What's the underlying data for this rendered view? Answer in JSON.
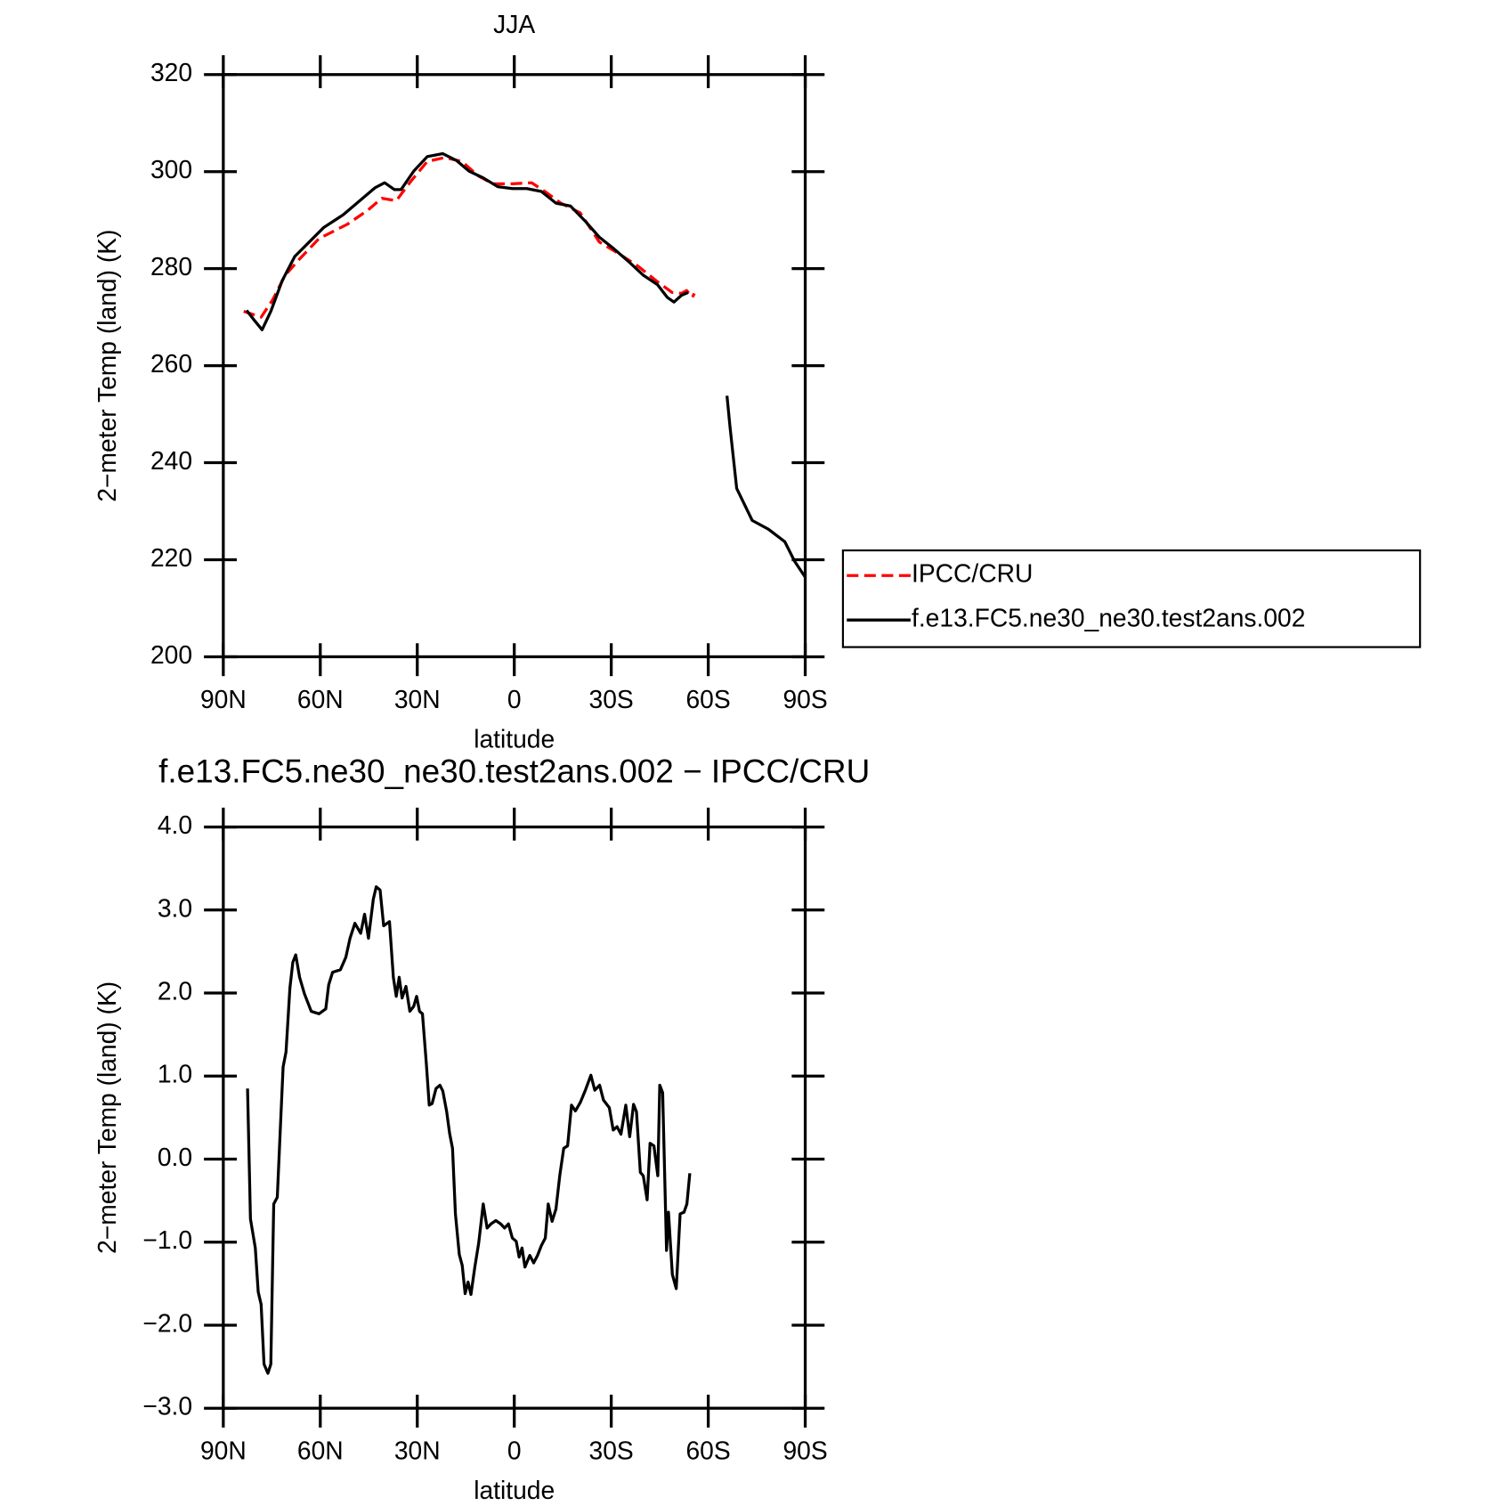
{
  "chart_data": [
    {
      "type": "line",
      "title": "JJA",
      "xlabel": "latitude",
      "ylabel": "2−meter Temp (land) (K)",
      "xlim": [
        90,
        -90
      ],
      "xticks": [
        {
          "value": 90,
          "label": "90N"
        },
        {
          "value": 60,
          "label": "60N"
        },
        {
          "value": 30,
          "label": "30N"
        },
        0,
        {
          "value": -30,
          "label": "30S"
        },
        {
          "value": -60,
          "label": "60S"
        },
        {
          "value": -90,
          "label": "90S"
        }
      ],
      "ylim": [
        200,
        320
      ],
      "yticks": [
        200,
        220,
        240,
        260,
        280,
        300,
        320
      ],
      "series": [
        {
          "name": "IPCC/CRU",
          "color": "#ff0000",
          "dash": true,
          "x": [
            83.7,
            78.3,
            74.7,
            70.9,
            66.4,
            60.4,
            51.5,
            45.4,
            41,
            36.5,
            32,
            26.9,
            21.5,
            16.2,
            11.1,
            6.6,
            0.6,
            -5.4,
            -9.9,
            -14.4,
            -20.4,
            -26.3,
            -32.3,
            -38.3,
            -44.3,
            -48.8,
            -51.7,
            -53.3,
            -55.1,
            -55.7
          ],
          "values": [
            271.2,
            270,
            273.6,
            278.6,
            282,
            286.2,
            289.2,
            292,
            294.5,
            294,
            298,
            302.1,
            302.9,
            302.1,
            299.1,
            297.5,
            297.5,
            297.7,
            295.7,
            293.5,
            291.5,
            285.5,
            283.1,
            280.5,
            277.3,
            275.1,
            274.9,
            275.5,
            274.1,
            274.9
          ]
        },
        {
          "name": "f.e13.FC5.ne30_ne30.test2ans.002",
          "color": "#000000",
          "dash": false,
          "x": [
            82.8,
            80.7,
            78,
            75.3,
            71.8,
            67.9,
            63.4,
            58.9,
            52.9,
            46.9,
            43,
            40.1,
            37.1,
            35,
            31.1,
            26.9,
            22.1,
            17.9,
            14,
            9.6,
            5.1,
            0.6,
            -3.9,
            -8.4,
            -12.9,
            -17.4,
            -21.8,
            -26.3,
            -30.8,
            -35.3,
            -39.8,
            -44.3,
            -47.3,
            -49.4,
            -51.7,
            -53.8,
            -60,
            -65.8,
            -66.7,
            -68.8,
            -73.6,
            -78.6,
            -83.7,
            -86.7,
            -90
          ],
          "values": [
            271.4,
            269.6,
            267.4,
            271.2,
            277.5,
            282.5,
            285.5,
            288.5,
            291.1,
            294.5,
            296.7,
            297.7,
            296.3,
            296.3,
            300.1,
            303.1,
            303.7,
            302.3,
            300.1,
            298.7,
            296.9,
            296.5,
            296.5,
            295.9,
            293.5,
            292.9,
            289.9,
            286.5,
            284.1,
            281.5,
            278.7,
            276.7,
            274.1,
            273.1,
            274.5,
            275.1,
            null,
            253.8,
            247.6,
            234.7,
            228.1,
            226.3,
            223.7,
            219.7,
            216.4
          ]
        }
      ]
    },
    {
      "type": "line",
      "title": "f.e13.FC5.ne30_ne30.test2ans.002 − IPCC/CRU",
      "xlabel": "latitude",
      "ylabel": "2−meter Temp (land) (K)",
      "xlim": [
        90,
        -90
      ],
      "xticks": [
        {
          "value": 90,
          "label": "90N"
        },
        {
          "value": 60,
          "label": "60N"
        },
        {
          "value": 30,
          "label": "30N"
        },
        0,
        {
          "value": -30,
          "label": "30S"
        },
        {
          "value": -60,
          "label": "60S"
        },
        {
          "value": -90,
          "label": "90S"
        }
      ],
      "ylim": [
        -3,
        4
      ],
      "yticks": [
        {
          "value": -3,
          "label": "−3.0"
        },
        {
          "value": -2,
          "label": "−2.0"
        },
        {
          "value": -1,
          "label": "−1.0"
        },
        {
          "value": 0,
          "label": "0.0"
        },
        {
          "value": 1,
          "label": "1.0"
        },
        {
          "value": 2,
          "label": "2.0"
        },
        {
          "value": 3,
          "label": "3.0"
        },
        {
          "value": 4,
          "label": "4.0"
        }
      ],
      "series": [
        {
          "color": "#000000",
          "dash": false,
          "x": [
            82.5,
            81.6,
            80.1,
            79.2,
            78.3,
            77.4,
            76.2,
            75.3,
            74.4,
            73.3,
            72.4,
            71.5,
            70.6,
            69.4,
            68.5,
            67.6,
            66.4,
            64.9,
            62.8,
            60.4,
            58.3,
            57.4,
            56.2,
            53.8,
            52.1,
            50.8,
            49.3,
            47.5,
            46.3,
            45.1,
            43.6,
            42.7,
            41.5,
            40.4,
            38.6,
            37.4,
            36.5,
            35.6,
            34.7,
            33.5,
            32.3,
            31.1,
            30.2,
            29.3,
            28.4,
            27.2,
            26.3,
            25.4,
            24.2,
            23,
            22.1,
            20.9,
            20,
            19.1,
            18.2,
            17,
            16.1,
            15.2,
            14.3,
            13.4,
            12.2,
            11,
            9.6,
            8.4,
            7.2,
            5.7,
            4.2,
            3,
            1.8,
            0.6,
            -0.6,
            -1.5,
            -2.4,
            -3.3,
            -4.8,
            -6,
            -7.2,
            -8.4,
            -9.6,
            -10.5,
            -11.7,
            -12.9,
            -14.1,
            -15.3,
            -16.5,
            -17.7,
            -18.9,
            -20.4,
            -21.9,
            -23.7,
            -24.9,
            -26.4,
            -27.6,
            -29.4,
            -30.6,
            -31.8,
            -33,
            -34.5,
            -35.7,
            -36.9,
            -37.8,
            -39,
            -39.9,
            -41.1,
            -42,
            -43.2,
            -44.4,
            -45,
            -45.9,
            -47.1,
            -47.7,
            -48.9,
            -50.1,
            -51.3,
            -52.5,
            -53.4,
            -54.3
          ],
          "values": [
            0.85,
            -0.72,
            -1.07,
            -1.6,
            -1.75,
            -2.47,
            -2.58,
            -2.47,
            -0.54,
            -0.46,
            0.33,
            1.11,
            1.29,
            2.06,
            2.37,
            2.46,
            2.19,
            1.99,
            1.78,
            1.75,
            1.81,
            2.1,
            2.25,
            2.28,
            2.43,
            2.66,
            2.84,
            2.72,
            2.95,
            2.66,
            3.13,
            3.28,
            3.24,
            2.81,
            2.86,
            2.19,
            1.96,
            2.19,
            1.94,
            2.08,
            1.78,
            1.84,
            1.96,
            1.78,
            1.75,
            1.15,
            0.65,
            0.67,
            0.85,
            0.89,
            0.82,
            0.57,
            0.31,
            0.13,
            -0.66,
            -1.15,
            -1.28,
            -1.62,
            -1.48,
            -1.63,
            -1.3,
            -1.01,
            -0.54,
            -0.83,
            -0.78,
            -0.74,
            -0.78,
            -0.83,
            -0.78,
            -0.95,
            -0.99,
            -1.18,
            -1.07,
            -1.3,
            -1.16,
            -1.25,
            -1.16,
            -1.04,
            -0.95,
            -0.54,
            -0.75,
            -0.6,
            -0.19,
            0.13,
            0.16,
            0.65,
            0.58,
            0.68,
            0.82,
            1.01,
            0.83,
            0.89,
            0.71,
            0.62,
            0.35,
            0.39,
            0.3,
            0.65,
            0.27,
            0.66,
            0.57,
            -0.16,
            -0.2,
            -0.49,
            0.19,
            0.16,
            -0.2,
            0.89,
            0.8,
            -1.1,
            -0.64,
            -1.39,
            -1.56,
            -0.66,
            -0.64,
            -0.54,
            -0.17
          ]
        }
      ]
    }
  ]
}
